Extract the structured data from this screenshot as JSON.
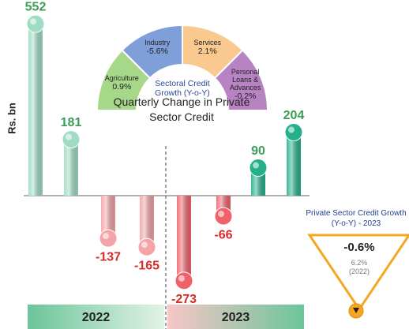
{
  "chart_data": [
    {
      "type": "bar",
      "title": "Quarterly Change in Private Sector Credit",
      "ylabel": "Rs. bn",
      "values": [
        552,
        181,
        -137,
        -165,
        -273,
        -66,
        90,
        204
      ],
      "colors": [
        "#9fdcc3",
        "#9fdcc3",
        "#f4a3a6",
        "#f4a3a6",
        "#f0616a",
        "#f0616a",
        "#23b08a",
        "#23b08a"
      ],
      "groups": [
        "2022",
        "2023"
      ],
      "ylim": [
        -280,
        560
      ]
    },
    {
      "type": "gauge",
      "title": "Sectoral Credit Growth (Y-o-Y)",
      "categories": [
        "Agriculture",
        "Industry",
        "Services",
        "Personal Loans & Advances"
      ],
      "values": [
        0.9,
        -5.6,
        2.1,
        -0.2
      ],
      "value_labels": [
        "0.9%",
        "-5.6%",
        "2.1%",
        "-0.2%"
      ],
      "colors": [
        "#a7d889",
        "#7f9fd8",
        "#f9c98f",
        "#b883c2"
      ]
    },
    {
      "type": "callout",
      "title": "Private Sector Credit Growth (Y-o-Y) - 2023",
      "value": -0.6,
      "value_label": "-0.6%",
      "previous": 6.2,
      "previous_label": "6.2%",
      "previous_period": "(2022)"
    }
  ]
}
